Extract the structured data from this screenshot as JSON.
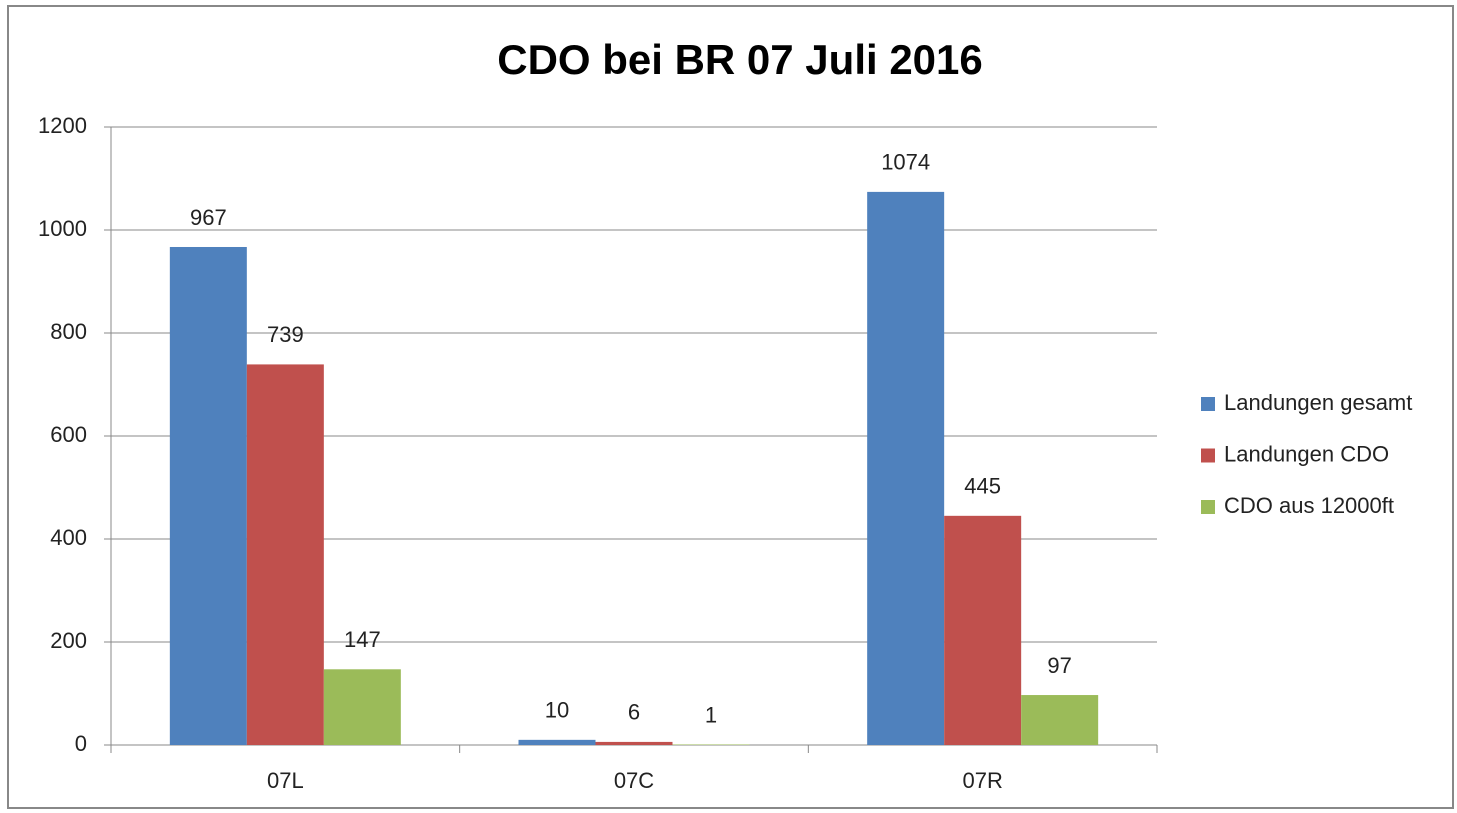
{
  "chart_data": {
    "type": "bar",
    "title": "CDO bei BR 07 Juli 2016",
    "categories": [
      "07L",
      "07C",
      "07R"
    ],
    "series": [
      {
        "name": "Landungen gesamt",
        "color": "#4f81bd",
        "values": [
          967,
          10,
          1074
        ]
      },
      {
        "name": "Landungen CDO",
        "color": "#c0504d",
        "values": [
          739,
          6,
          445
        ]
      },
      {
        "name": "CDO aus 12000ft",
        "color": "#9bbb59",
        "values": [
          147,
          1,
          97
        ]
      }
    ],
    "ylim": [
      0,
      1200
    ],
    "yticks": [
      0,
      200,
      400,
      600,
      800,
      1000,
      1200
    ],
    "grid": true,
    "legend": "right",
    "data_labels": true
  }
}
